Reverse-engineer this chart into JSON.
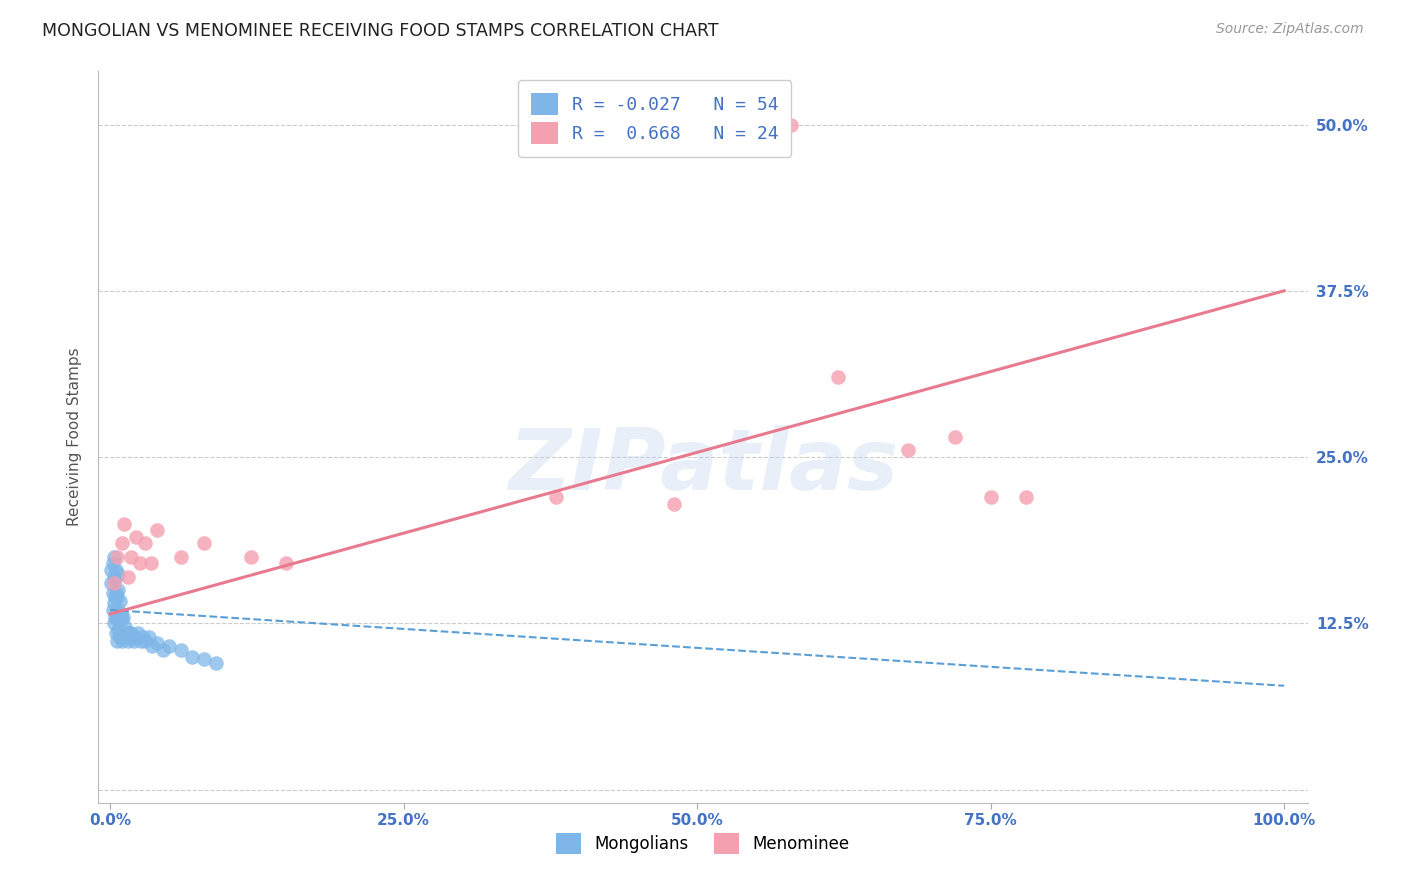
{
  "title": "MONGOLIAN VS MENOMINEE RECEIVING FOOD STAMPS CORRELATION CHART",
  "source": "Source: ZipAtlas.com",
  "ylabel": "Receiving Food Stamps",
  "watermark": "ZIPatlas",
  "mongolian_R": -0.027,
  "mongolian_N": 54,
  "menominee_R": 0.668,
  "menominee_N": 24,
  "xlim": [
    -0.01,
    1.02
  ],
  "ylim": [
    -0.01,
    0.54
  ],
  "xticks": [
    0.0,
    0.25,
    0.5,
    0.75,
    1.0
  ],
  "xtick_labels": [
    "0.0%",
    "25.0%",
    "50.0%",
    "75.0%",
    "100.0%"
  ],
  "yticks": [
    0.0,
    0.125,
    0.25,
    0.375,
    0.5
  ],
  "ytick_labels": [
    "",
    "12.5%",
    "25.0%",
    "37.5%",
    "50.0%"
  ],
  "mongolian_color": "#7EB6E8",
  "menominee_color": "#F4A0B0",
  "mongolian_line_color": "#5A9ED6",
  "menominee_line_color": "#E87A90",
  "background_color": "#FFFFFF",
  "grid_color": "#CCCCCC",
  "title_color": "#222222",
  "axis_label_color": "#555555",
  "tick_color": "#4472C4",
  "source_color": "#999999",
  "mongolian_x": [
    0.001,
    0.001,
    0.002,
    0.002,
    0.002,
    0.003,
    0.003,
    0.003,
    0.003,
    0.004,
    0.004,
    0.004,
    0.005,
    0.005,
    0.005,
    0.005,
    0.006,
    0.006,
    0.006,
    0.007,
    0.007,
    0.007,
    0.007,
    0.008,
    0.008,
    0.008,
    0.009,
    0.009,
    0.01,
    0.01,
    0.011,
    0.011,
    0.012,
    0.013,
    0.014,
    0.015,
    0.016,
    0.017,
    0.018,
    0.02,
    0.022,
    0.024,
    0.026,
    0.028,
    0.03,
    0.033,
    0.036,
    0.04,
    0.045,
    0.05,
    0.06,
    0.07,
    0.08,
    0.09
  ],
  "mongolian_y": [
    0.155,
    0.165,
    0.135,
    0.148,
    0.17,
    0.125,
    0.14,
    0.16,
    0.175,
    0.13,
    0.145,
    0.158,
    0.118,
    0.132,
    0.148,
    0.165,
    0.112,
    0.128,
    0.145,
    0.12,
    0.135,
    0.15,
    0.162,
    0.115,
    0.128,
    0.142,
    0.118,
    0.132,
    0.112,
    0.128,
    0.115,
    0.13,
    0.118,
    0.122,
    0.118,
    0.112,
    0.118,
    0.115,
    0.118,
    0.112,
    0.115,
    0.118,
    0.112,
    0.115,
    0.112,
    0.115,
    0.108,
    0.11,
    0.105,
    0.108,
    0.105,
    0.1,
    0.098,
    0.095
  ],
  "menominee_x": [
    0.003,
    0.006,
    0.01,
    0.012,
    0.015,
    0.018,
    0.022,
    0.025,
    0.03,
    0.035,
    0.04,
    0.06,
    0.08,
    0.12,
    0.15,
    0.55,
    0.58,
    0.62,
    0.68,
    0.72,
    0.75,
    0.78,
    0.48,
    0.38
  ],
  "menominee_y": [
    0.155,
    0.175,
    0.185,
    0.2,
    0.16,
    0.175,
    0.19,
    0.17,
    0.185,
    0.17,
    0.195,
    0.175,
    0.185,
    0.175,
    0.17,
    0.5,
    0.5,
    0.31,
    0.255,
    0.265,
    0.22,
    0.22,
    0.215,
    0.22
  ],
  "menominee_trendline_x0": 0.0,
  "menominee_trendline_y0": 0.132,
  "menominee_trendline_x1": 1.0,
  "menominee_trendline_y1": 0.375,
  "mongolian_trendline_x0": 0.0,
  "mongolian_trendline_y0": 0.135,
  "mongolian_trendline_x1": 1.0,
  "mongolian_trendline_y1": 0.078
}
